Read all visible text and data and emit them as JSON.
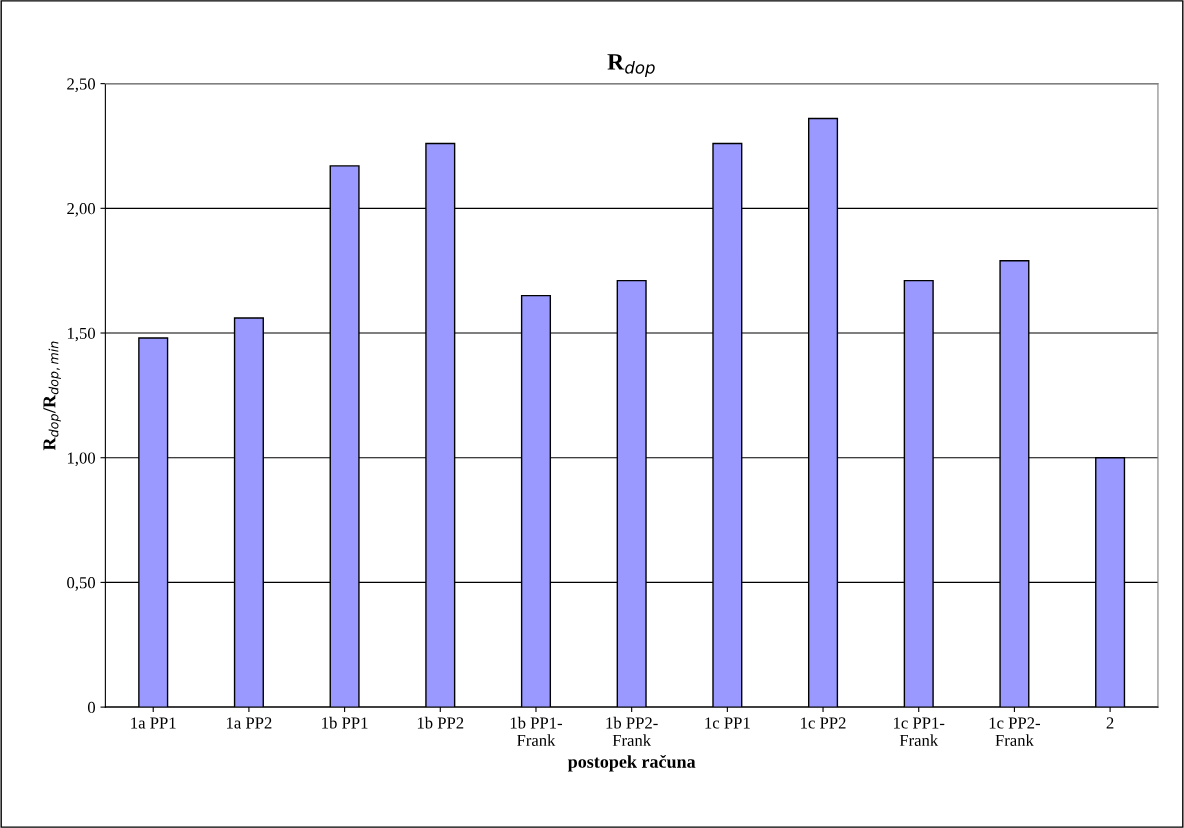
{
  "chart_data": {
    "type": "bar",
    "title": "R$_{dop}$",
    "xlabel": "postopek računa",
    "ylabel": "R$_{dop}$/R$_{dop,min}$",
    "categories": [
      "1a PP1",
      "1a PP2",
      "1b PP1",
      "1b PP2",
      "1b PP1-\nFrank",
      "1b PP2-\nFrank",
      "1c PP1",
      "1c PP2",
      "1c PP1-\nFrank",
      "1c PP2-\nFrank",
      "2"
    ],
    "values": [
      1.48,
      1.56,
      2.17,
      2.26,
      1.65,
      1.71,
      2.26,
      2.36,
      1.71,
      1.79,
      1.0
    ],
    "color": "#9999ff",
    "ylim": [
      0,
      2.5
    ],
    "yticks": [
      0,
      {
        "value": 0.5,
        "label": "0,50"
      },
      {
        "value": 1.0,
        "label": "1,00"
      },
      {
        "value": 1.5,
        "label": "1,50"
      },
      {
        "value": 2.0,
        "label": "2,00"
      },
      {
        "value": 2.5,
        "label": "2,50"
      }
    ],
    "grid": "y",
    "legend": false
  }
}
